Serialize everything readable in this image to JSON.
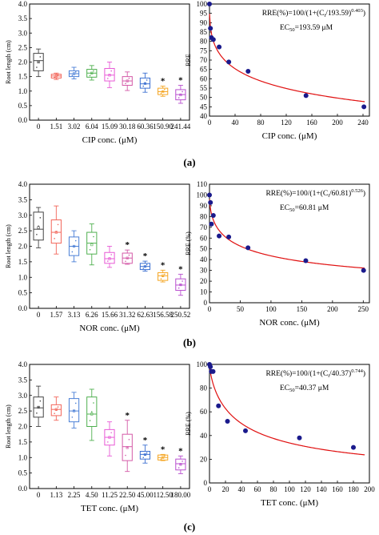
{
  "chart_data": [
    {
      "id": "a-box",
      "type": "box",
      "xlabel": "CIP  conc.  (μM)",
      "ylabel": "Root length (cm)",
      "categories": [
        "0",
        "1.51",
        "3.02",
        "6.04",
        "15.09",
        "30.18",
        "60.36",
        "150.90",
        "241.44"
      ],
      "ylim": [
        0,
        4
      ],
      "yticks": [
        0,
        0.5,
        1.0,
        1.5,
        2.0,
        2.5,
        3.0,
        3.5,
        4.0
      ],
      "yticklabels": [
        "0.0",
        "0.5",
        "1.0",
        "1.5",
        "2.0",
        "2.5",
        "3.0",
        "3.5",
        "4.0"
      ],
      "colors": [
        "#444444",
        "#f2665a",
        "#4a7fd6",
        "#4fb04f",
        "#e85ad6",
        "#d45aa8",
        "#3b6fd1",
        "#f5a623",
        "#b84ecf"
      ],
      "boxes": [
        {
          "q1": 1.7,
          "q3": 2.3,
          "med": 2.05,
          "wlo": 1.5,
          "whi": 2.45,
          "mean": 2.0
        },
        {
          "q1": 1.45,
          "q3": 1.58,
          "med": 1.52,
          "wlo": 1.4,
          "whi": 1.62,
          "mean": 1.52
        },
        {
          "q1": 1.5,
          "q3": 1.7,
          "med": 1.6,
          "wlo": 1.42,
          "whi": 1.82,
          "mean": 1.6
        },
        {
          "q1": 1.48,
          "q3": 1.75,
          "med": 1.62,
          "wlo": 1.38,
          "whi": 1.88,
          "mean": 1.62
        },
        {
          "q1": 1.35,
          "q3": 1.78,
          "med": 1.55,
          "wlo": 1.12,
          "whi": 2.0,
          "mean": 1.55
        },
        {
          "q1": 1.2,
          "q3": 1.5,
          "med": 1.35,
          "wlo": 1.02,
          "whi": 1.66,
          "mean": 1.35
        },
        {
          "q1": 1.1,
          "q3": 1.45,
          "med": 1.25,
          "wlo": 0.96,
          "whi": 1.62,
          "mean": 1.26
        },
        {
          "q1": 0.88,
          "q3": 1.1,
          "med": 0.98,
          "wlo": 0.82,
          "whi": 1.17,
          "mean": 0.98
        },
        {
          "q1": 0.7,
          "q3": 1.05,
          "med": 0.88,
          "wlo": 0.58,
          "whi": 1.2,
          "mean": 0.87
        }
      ],
      "stars": [
        7,
        8
      ],
      "star_label": "*"
    },
    {
      "id": "a-fit",
      "type": "scatter",
      "xlabel": "CIP  conc.  (μM)",
      "ylabel": "RRE",
      "xlim": [
        0,
        250
      ],
      "xticks": [
        0,
        40,
        80,
        120,
        160,
        200,
        240
      ],
      "ylim": [
        40,
        100
      ],
      "yticks": [
        40,
        45,
        50,
        55,
        60,
        65,
        70,
        75,
        80,
        85,
        90,
        95,
        100
      ],
      "x": [
        0,
        1.51,
        3.02,
        6.04,
        15.09,
        30.18,
        60.36,
        150.9,
        241.44
      ],
      "y": [
        100,
        87,
        82,
        81,
        77,
        69,
        64,
        51,
        45
      ],
      "fit": {
        "ec50": 193.59,
        "p": 0.403
      },
      "equation": "RRE(%)=100/(1+(C",
      "eq_sub": "i",
      "eq_tail": "/193.59)",
      "eq_exp": "0.403",
      "eq_close": ")",
      "ec_label": "EC",
      "ec_sub": "50",
      "ec_value": "=193.59 μM"
    },
    {
      "id": "b-box",
      "type": "box",
      "xlabel": "NOR conc. (μM)",
      "ylabel": "Root length (cm)",
      "categories": [
        "0",
        "1.57",
        "3.13",
        "6.26",
        "15.66",
        "31.32",
        "62.63",
        "156.58",
        "250.52"
      ],
      "ylim": [
        0,
        4
      ],
      "yticks": [
        0,
        0.5,
        1.0,
        1.5,
        2.0,
        2.5,
        3.0,
        3.5,
        4.0
      ],
      "yticklabels": [
        "0.0",
        "0.5",
        "1.0",
        "1.5",
        "2.0",
        "2.5",
        "3.0",
        "3.5",
        "4.0"
      ],
      "colors": [
        "#444444",
        "#f2665a",
        "#4a7fd6",
        "#4fb04f",
        "#e85ad6",
        "#d45aa8",
        "#3b6fd1",
        "#f5a623",
        "#b84ecf"
      ],
      "boxes": [
        {
          "q1": 2.2,
          "q3": 3.1,
          "med": 2.55,
          "wlo": 1.95,
          "whi": 3.25,
          "mean": 2.6
        },
        {
          "q1": 2.1,
          "q3": 2.85,
          "med": 2.45,
          "wlo": 1.75,
          "whi": 3.3,
          "mean": 2.45
        },
        {
          "q1": 1.7,
          "q3": 2.3,
          "med": 2.0,
          "wlo": 1.5,
          "whi": 2.5,
          "mean": 2.0
        },
        {
          "q1": 1.75,
          "q3": 2.45,
          "med": 2.1,
          "wlo": 1.4,
          "whi": 2.72,
          "mean": 2.05
        },
        {
          "q1": 1.45,
          "q3": 1.8,
          "med": 1.6,
          "wlo": 1.32,
          "whi": 2.0,
          "mean": 1.6
        },
        {
          "q1": 1.45,
          "q3": 1.78,
          "med": 1.62,
          "wlo": 1.42,
          "whi": 1.88,
          "mean": 1.62
        },
        {
          "q1": 1.25,
          "q3": 1.45,
          "med": 1.35,
          "wlo": 1.2,
          "whi": 1.52,
          "mean": 1.35
        },
        {
          "q1": 0.9,
          "q3": 1.15,
          "med": 1.05,
          "wlo": 0.85,
          "whi": 1.23,
          "mean": 1.05
        },
        {
          "q1": 0.58,
          "q3": 0.95,
          "med": 0.75,
          "wlo": 0.42,
          "whi": 1.1,
          "mean": 0.76
        }
      ],
      "stars": [
        5,
        6,
        7,
        8
      ],
      "star_label": "*"
    },
    {
      "id": "b-fit",
      "type": "scatter",
      "xlabel": "NOR conc. (μM)",
      "ylabel": "RRE (%)",
      "xlim": [
        0,
        260
      ],
      "xticks": [
        0,
        50,
        100,
        150,
        200,
        250
      ],
      "ylim": [
        0,
        110
      ],
      "yticks": [
        0,
        10,
        20,
        30,
        40,
        50,
        60,
        70,
        80,
        90,
        100,
        110
      ],
      "x": [
        0,
        1.57,
        3.13,
        6.26,
        15.66,
        31.32,
        62.63,
        156.58,
        250.52
      ],
      "y": [
        100,
        93,
        73,
        81,
        62,
        61,
        51,
        39,
        30
      ],
      "fit": {
        "ec50": 60.81,
        "p": 0.526
      },
      "equation": "RRE(%)=100/(1+(C",
      "eq_sub": "i",
      "eq_tail": "/60.81)",
      "eq_exp": "0.526",
      "eq_close": ")",
      "ec_label": "EC",
      "ec_sub": "50",
      "ec_value": "=60.81 μM"
    },
    {
      "id": "c-box",
      "type": "box",
      "xlabel": "TET conc. (μM)",
      "ylabel": "Root length (cm)",
      "categories": [
        "0",
        "1.13",
        "2.25",
        "4.50",
        "11.25",
        "22.50",
        "45.00",
        "112.50",
        "180.00"
      ],
      "ylim": [
        0,
        4
      ],
      "yticks": [
        0,
        0.5,
        1.0,
        1.5,
        2.0,
        2.5,
        3.0,
        3.5,
        4.0
      ],
      "yticklabels": [
        "0.0",
        "0.5",
        "1.0",
        "1.5",
        "2.0",
        "2.5",
        "3.0",
        "3.5",
        "4.0"
      ],
      "colors": [
        "#444444",
        "#f2665a",
        "#4a7fd6",
        "#4fb04f",
        "#e85ad6",
        "#d45aa8",
        "#3b6fd1",
        "#f5a623",
        "#b84ecf"
      ],
      "boxes": [
        {
          "q1": 2.3,
          "q3": 2.95,
          "med": 2.6,
          "wlo": 2.0,
          "whi": 3.3,
          "mean": 2.62
        },
        {
          "q1": 2.35,
          "q3": 2.7,
          "med": 2.55,
          "wlo": 2.2,
          "whi": 2.95,
          "mean": 2.55
        },
        {
          "q1": 2.15,
          "q3": 2.9,
          "med": 2.5,
          "wlo": 1.95,
          "whi": 3.1,
          "mean": 2.5
        },
        {
          "q1": 2.0,
          "q3": 2.95,
          "med": 2.4,
          "wlo": 1.55,
          "whi": 3.2,
          "mean": 2.4
        },
        {
          "q1": 1.4,
          "q3": 1.9,
          "med": 1.65,
          "wlo": 1.05,
          "whi": 2.15,
          "mean": 1.65
        },
        {
          "q1": 0.9,
          "q3": 1.75,
          "med": 1.35,
          "wlo": 0.55,
          "whi": 2.2,
          "mean": 1.32
        },
        {
          "q1": 0.95,
          "q3": 1.2,
          "med": 1.1,
          "wlo": 0.82,
          "whi": 1.4,
          "mean": 1.1
        },
        {
          "q1": 0.92,
          "q3": 1.08,
          "med": 1.0,
          "wlo": 0.9,
          "whi": 1.1,
          "mean": 1.0
        },
        {
          "q1": 0.6,
          "q3": 0.95,
          "med": 0.8,
          "wlo": 0.48,
          "whi": 1.05,
          "mean": 0.78
        }
      ],
      "stars": [
        5,
        6,
        7,
        8
      ],
      "star_label": "*"
    },
    {
      "id": "c-fit",
      "type": "scatter",
      "xlabel": "TET conc. (μM)",
      "ylabel": "RRE (%)",
      "xlim": [
        0,
        200
      ],
      "xticks": [
        0,
        20,
        40,
        60,
        80,
        100,
        120,
        140,
        160,
        180,
        200
      ],
      "ylim": [
        0,
        100
      ],
      "yticks": [
        0,
        20,
        40,
        60,
        80,
        100
      ],
      "x": [
        0,
        1.13,
        2.25,
        4.5,
        11.25,
        22.5,
        45.0,
        112.5,
        180.0
      ],
      "y": [
        100,
        98,
        94,
        94,
        65,
        52,
        44,
        38,
        30
      ],
      "fit": {
        "ec50": 40.37,
        "p": 0.744
      },
      "equation": "RRE(%)=100/(1+(C",
      "eq_sub": "i",
      "eq_tail": "/40.37)",
      "eq_exp": "0.744",
      "eq_close": ")",
      "ec_label": "EC",
      "ec_sub": "50",
      "ec_value": "=40.37 μM"
    }
  ],
  "panel_labels": [
    "(a)",
    "(b)",
    "(c)"
  ],
  "style": {
    "fit_color": "#e01010",
    "point_color": "#1a1a8c",
    "axis_color": "#000000"
  }
}
